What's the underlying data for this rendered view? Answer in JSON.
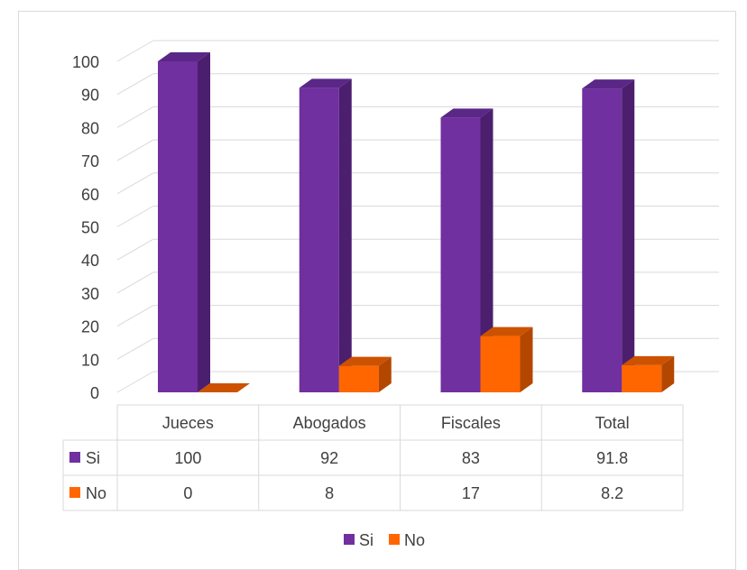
{
  "chart_data": {
    "type": "bar",
    "categories": [
      "Jueces",
      "Abogados",
      "Fiscales",
      "Total"
    ],
    "series": [
      {
        "name": "Si",
        "values": [
          100,
          92,
          83,
          91.8
        ],
        "display": [
          "100",
          "92",
          "83",
          "91.8"
        ],
        "color": "#7030a0",
        "side_color": "#4b1f6e",
        "top_color": "#5a2787"
      },
      {
        "name": "No",
        "values": [
          0,
          8,
          17,
          8.2
        ],
        "display": [
          "0",
          "8",
          "17",
          "8.2"
        ],
        "color": "#ff6600",
        "side_color": "#b34700",
        "top_color": "#cc5200"
      }
    ],
    "ylim": [
      0,
      100
    ],
    "y_ticks": [
      "0",
      "10",
      "20",
      "30",
      "40",
      "50",
      "60",
      "70",
      "80",
      "90",
      "100"
    ],
    "grid": true,
    "legend": "bottom",
    "data_table": true
  }
}
